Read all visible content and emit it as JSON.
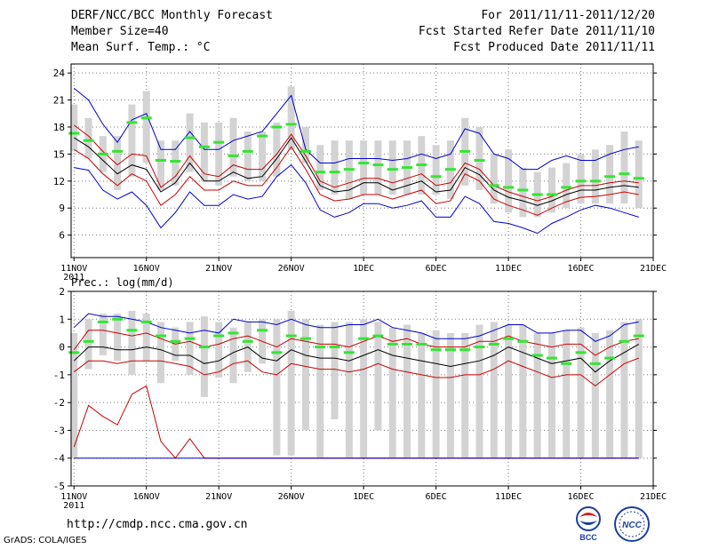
{
  "header": {
    "title": "DERF/NCC/BCC Monthly Forecast",
    "member_size": "Member Size=40",
    "variable": "Mean Surf. Temp.: °C",
    "forecast_period": "For 2011/11/11-2011/12/20",
    "started_date": "Fcst Started Refer Date 2011/11/10",
    "produced_date": "Fcst Produced Date 2011/11/11"
  },
  "footer": {
    "url": "http://cmdp.ncc.cma.gov.cn",
    "credit": "GrADS: COLA/IGES",
    "logo_bcc": "BCC",
    "logo_ncc": "NCC"
  },
  "colors": {
    "box": "#d3d3d3",
    "median": "#33e633",
    "mean": "#000000",
    "sd_band": "#cc0000",
    "extreme": "#0000cc",
    "grid": "#777777"
  },
  "chart_data": [
    {
      "type": "box-line",
      "title": "Mean Surf. Temp.: °C",
      "ylabel": "°C",
      "ylim": [
        3.5,
        25
      ],
      "yticks": [
        6,
        9,
        12,
        15,
        18,
        21,
        24
      ],
      "xticks": [
        {
          "day": 1,
          "label": "11NOV"
        },
        {
          "day": 6,
          "label": "16NOV"
        },
        {
          "day": 11,
          "label": "21NOV"
        },
        {
          "day": 16,
          "label": "26NOV"
        },
        {
          "day": 21,
          "label": "1DEC"
        },
        {
          "day": 26,
          "label": "6DEC"
        },
        {
          "day": 31,
          "label": "11DEC"
        },
        {
          "day": 36,
          "label": "16DEC"
        },
        {
          "day": 41,
          "label": "21DEC"
        }
      ],
      "year_label": "2011",
      "xlim": [
        0.8,
        41
      ],
      "grid": true,
      "days": [
        1,
        2,
        3,
        4,
        5,
        6,
        7,
        8,
        9,
        10,
        11,
        12,
        13,
        14,
        15,
        16,
        17,
        18,
        19,
        20,
        21,
        22,
        23,
        24,
        25,
        26,
        27,
        28,
        29,
        30,
        31,
        32,
        33,
        34,
        35,
        36,
        37,
        38,
        39,
        40
      ],
      "box_low": [
        15.3,
        14.5,
        13.0,
        11.0,
        12.5,
        14.0,
        11.0,
        11.5,
        13.0,
        12.0,
        11.5,
        12.5,
        12.0,
        12.0,
        12.5,
        15.5,
        14.0,
        11.0,
        10.5,
        10.0,
        10.5,
        10.5,
        10.5,
        10.5,
        10.5,
        10.5,
        10.0,
        11.5,
        11.0,
        9.5,
        8.5,
        8.0,
        8.0,
        8.5,
        9.0,
        9.5,
        9.5,
        9.5,
        9.5,
        9.0
      ],
      "box_high": [
        20.5,
        19.0,
        17.0,
        17.0,
        20.5,
        22.0,
        16.5,
        16.5,
        19.5,
        18.5,
        18.5,
        19.0,
        17.5,
        17.5,
        18.5,
        22.5,
        18.0,
        16.0,
        16.5,
        16.5,
        16.5,
        16.5,
        16.5,
        16.5,
        17.0,
        16.0,
        16.5,
        19.0,
        18.0,
        15.0,
        15.5,
        13.5,
        13.0,
        13.5,
        14.0,
        15.0,
        15.5,
        16.0,
        17.5,
        16.5
      ],
      "series": [
        {
          "name": "ensemble max",
          "color": "#0000cc",
          "values": [
            22.3,
            21.0,
            18.3,
            16.3,
            18.8,
            19.5,
            15.5,
            15.5,
            17.5,
            15.5,
            15.5,
            16.5,
            17.0,
            17.5,
            19.5,
            21.5,
            15.5,
            14.0,
            14.0,
            14.5,
            14.5,
            14.5,
            14.3,
            14.5,
            15.0,
            14.5,
            15.0,
            17.8,
            17.3,
            15.0,
            14.5,
            13.3,
            13.3,
            14.3,
            14.8,
            14.3,
            14.3,
            15.0,
            15.5,
            15.8
          ]
        },
        {
          "name": "mean + 1 sd",
          "color": "#cc0000",
          "values": [
            18.2,
            17.0,
            15.3,
            13.8,
            15.0,
            14.8,
            11.3,
            12.5,
            14.8,
            12.8,
            12.5,
            13.8,
            13.3,
            13.3,
            15.0,
            17.2,
            14.8,
            12.0,
            11.3,
            11.8,
            12.3,
            12.3,
            11.8,
            12.3,
            12.8,
            11.5,
            11.8,
            14.0,
            13.3,
            11.5,
            10.8,
            10.3,
            9.8,
            10.3,
            11.0,
            11.5,
            11.5,
            11.8,
            12.0,
            11.8
          ]
        },
        {
          "name": "ensemble mean",
          "color": "#000000",
          "values": [
            16.8,
            15.8,
            14.3,
            12.8,
            13.8,
            13.3,
            10.8,
            11.8,
            14.0,
            12.0,
            12.0,
            13.0,
            12.3,
            12.5,
            14.5,
            16.8,
            14.2,
            11.5,
            10.8,
            11.0,
            11.8,
            11.8,
            11.0,
            11.5,
            12.0,
            10.8,
            11.0,
            13.5,
            12.7,
            11.0,
            10.2,
            9.8,
            9.3,
            9.8,
            10.5,
            11.0,
            11.0,
            11.3,
            11.5,
            11.3
          ]
        },
        {
          "name": "mean - 1 sd",
          "color": "#cc0000",
          "values": [
            15.5,
            14.5,
            12.8,
            11.5,
            12.8,
            12.0,
            9.3,
            10.5,
            12.5,
            11.0,
            11.0,
            12.0,
            11.5,
            11.5,
            13.5,
            15.8,
            13.3,
            10.5,
            9.8,
            10.0,
            10.5,
            10.5,
            10.0,
            10.5,
            11.0,
            9.5,
            9.8,
            12.8,
            12.0,
            10.0,
            9.3,
            8.8,
            8.2,
            9.0,
            9.7,
            10.2,
            10.3,
            10.5,
            10.8,
            10.5
          ]
        },
        {
          "name": "ensemble min",
          "color": "#0000cc",
          "values": [
            13.5,
            13.2,
            11.0,
            10.0,
            10.8,
            9.3,
            6.8,
            8.5,
            10.8,
            9.3,
            9.3,
            10.5,
            10.0,
            10.3,
            12.5,
            13.8,
            11.8,
            8.8,
            8.0,
            8.5,
            9.5,
            9.5,
            9.0,
            9.3,
            9.8,
            8.0,
            8.0,
            10.3,
            9.5,
            7.5,
            7.3,
            6.8,
            6.2,
            7.3,
            8.0,
            8.8,
            9.3,
            9.0,
            8.5,
            8.0
          ]
        }
      ],
      "median": [
        17.3,
        16.5,
        15.0,
        15.3,
        18.5,
        19.0,
        14.3,
        14.2,
        16.8,
        15.8,
        16.3,
        14.8,
        15.3,
        17.0,
        18.0,
        18.3,
        15.3,
        13.0,
        13.0,
        13.3,
        14.0,
        13.8,
        13.3,
        13.5,
        13.8,
        12.5,
        13.3,
        15.3,
        14.3,
        11.5,
        11.3,
        11.0,
        10.5,
        10.5,
        11.3,
        12.0,
        12.0,
        12.5,
        12.8,
        12.3
      ]
    },
    {
      "type": "box-line",
      "title": "Prec.: log(mm/d)",
      "ylabel": "log(mm/d)",
      "ylim": [
        -5,
        2
      ],
      "yticks": [
        -5,
        -4,
        -3,
        -2,
        -1,
        0,
        1,
        2
      ],
      "xticks": [
        {
          "day": 1,
          "label": "11NOV"
        },
        {
          "day": 6,
          "label": "16NOV"
        },
        {
          "day": 11,
          "label": "21NOV"
        },
        {
          "day": 16,
          "label": "26NOV"
        },
        {
          "day": 21,
          "label": "1DEC"
        },
        {
          "day": 26,
          "label": "6DEC"
        },
        {
          "day": 31,
          "label": "11DEC"
        },
        {
          "day": 36,
          "label": "16DEC"
        },
        {
          "day": 41,
          "label": "21DEC"
        }
      ],
      "year_label": "2011",
      "xlim": [
        0.8,
        41
      ],
      "grid": true,
      "days": [
        1,
        2,
        3,
        4,
        5,
        6,
        7,
        8,
        9,
        10,
        11,
        12,
        13,
        14,
        15,
        16,
        17,
        18,
        19,
        20,
        21,
        22,
        23,
        24,
        25,
        26,
        27,
        28,
        29,
        30,
        31,
        32,
        33,
        34,
        35,
        36,
        37,
        38,
        39,
        40
      ],
      "box_low": [
        -4.0,
        -0.8,
        -0.3,
        -0.5,
        -1.0,
        -0.5,
        -1.3,
        -0.5,
        -1.0,
        -1.8,
        -1.1,
        -1.3,
        -0.9,
        -0.6,
        -3.9,
        -3.9,
        -3.0,
        -4.0,
        -2.6,
        -4.0,
        -4.0,
        -3.0,
        -4.0,
        -4.0,
        -4.0,
        -4.0,
        -4.0,
        -4.0,
        -4.0,
        -4.0,
        -4.0,
        -4.0,
        -4.0,
        -4.0,
        -4.0,
        -4.0,
        -4.0,
        -4.0,
        -4.0,
        -4.0
      ],
      "box_high": [
        0.5,
        1.0,
        1.2,
        1.2,
        1.3,
        1.2,
        0.9,
        0.7,
        0.9,
        1.1,
        0.9,
        0.7,
        0.9,
        1.0,
        1.0,
        1.3,
        1.0,
        0.8,
        0.9,
        0.9,
        1.0,
        0.9,
        0.7,
        0.8,
        0.5,
        0.6,
        0.5,
        0.5,
        0.8,
        0.9,
        0.8,
        0.8,
        0.5,
        0.5,
        0.6,
        0.7,
        0.5,
        0.6,
        0.9,
        1.0
      ],
      "series": [
        {
          "name": "ensemble max",
          "color": "#0000cc",
          "values": [
            0.7,
            1.2,
            1.1,
            1.1,
            1.0,
            0.9,
            0.7,
            0.6,
            0.5,
            0.6,
            0.5,
            1.0,
            0.9,
            0.9,
            0.8,
            1.0,
            0.8,
            0.7,
            0.7,
            0.8,
            0.8,
            1.0,
            0.7,
            0.6,
            0.5,
            0.3,
            0.3,
            0.3,
            0.4,
            0.6,
            0.8,
            0.8,
            0.5,
            0.5,
            0.6,
            0.6,
            0.2,
            0.4,
            0.8,
            0.9
          ]
        },
        {
          "name": "mean + 1 sd",
          "color": "#cc0000",
          "values": [
            -0.1,
            0.6,
            0.6,
            0.5,
            0.4,
            0.5,
            0.3,
            0.1,
            0.2,
            0.0,
            0.1,
            0.3,
            0.4,
            0.2,
            0.0,
            0.3,
            0.2,
            0.1,
            0.1,
            0.0,
            0.2,
            0.4,
            0.2,
            0.3,
            0.1,
            0.0,
            0.0,
            0.0,
            0.2,
            0.2,
            0.4,
            0.2,
            0.1,
            0.0,
            0.1,
            0.1,
            -0.3,
            0.0,
            0.2,
            0.3
          ]
        },
        {
          "name": "ensemble mean",
          "color": "#000000",
          "values": [
            -0.5,
            0.0,
            0.0,
            -0.1,
            -0.1,
            0.0,
            -0.1,
            -0.3,
            -0.3,
            -0.6,
            -0.5,
            -0.2,
            0.0,
            -0.4,
            -0.5,
            -0.1,
            -0.3,
            -0.4,
            -0.4,
            -0.5,
            -0.3,
            -0.1,
            -0.3,
            -0.4,
            -0.5,
            -0.6,
            -0.7,
            -0.6,
            -0.5,
            -0.3,
            0.0,
            -0.2,
            -0.4,
            -0.6,
            -0.5,
            -0.4,
            -0.9,
            -0.5,
            -0.2,
            0.1
          ]
        },
        {
          "name": "mean - 1 sd",
          "color": "#cc0000",
          "values": [
            -0.9,
            -0.5,
            -0.5,
            -0.6,
            -0.5,
            -0.5,
            -0.5,
            -0.6,
            -0.7,
            -1.0,
            -0.9,
            -0.6,
            -0.5,
            -0.9,
            -1.0,
            -0.6,
            -0.7,
            -0.8,
            -0.8,
            -0.9,
            -0.8,
            -0.6,
            -0.8,
            -0.9,
            -1.0,
            -1.1,
            -1.1,
            -1.0,
            -1.0,
            -0.8,
            -0.5,
            -0.7,
            -0.9,
            -1.1,
            -1.0,
            -1.0,
            -1.4,
            -1.0,
            -0.6,
            -0.4
          ]
        },
        {
          "name": "ensemble min",
          "color": "#cc0000",
          "values": [
            -3.6,
            -2.1,
            -2.5,
            -2.8,
            -1.7,
            -1.4,
            -3.4,
            -4.0,
            -3.3,
            -4.0,
            -4.0,
            -4.0,
            -4.0,
            -4.0,
            -4.0,
            -4.0,
            -4.0,
            -4.0,
            -4.0,
            -4.0,
            -4.0,
            -4.0,
            -4.0,
            -4.0,
            -4.0,
            -4.0,
            -4.0,
            -4.0,
            -4.0,
            -4.0,
            -4.0,
            -4.0,
            -4.0,
            -4.0,
            -4.0,
            -4.0,
            -4.0,
            -4.0,
            -4.0,
            -4.0
          ]
        },
        {
          "name": "floor",
          "color": "#0000cc",
          "values": [
            -4.0,
            -4.0,
            -4.0,
            -4.0,
            -4.0,
            -4.0,
            -4.0,
            -4.0,
            -4.0,
            -4.0,
            -4.0,
            -4.0,
            -4.0,
            -4.0,
            -4.0,
            -4.0,
            -4.0,
            -4.0,
            -4.0,
            -4.0,
            -4.0,
            -4.0,
            -4.0,
            -4.0,
            -4.0,
            -4.0,
            -4.0,
            -4.0,
            -4.0,
            -4.0,
            -4.0,
            -4.0,
            -4.0,
            -4.0,
            -4.0,
            -4.0,
            -4.0,
            -4.0,
            -4.0,
            -4.0
          ]
        }
      ],
      "median": [
        -0.2,
        0.2,
        0.9,
        1.0,
        0.6,
        0.9,
        0.4,
        0.2,
        0.3,
        0.0,
        0.4,
        0.5,
        0.2,
        0.6,
        -0.2,
        0.4,
        0.3,
        0.0,
        0.0,
        -0.2,
        0.3,
        0.4,
        0.1,
        0.1,
        0.1,
        -0.1,
        -0.1,
        -0.1,
        0.0,
        0.1,
        0.3,
        0.2,
        -0.3,
        -0.4,
        -0.6,
        -0.2,
        -0.6,
        -0.4,
        0.2,
        0.4
      ]
    }
  ]
}
